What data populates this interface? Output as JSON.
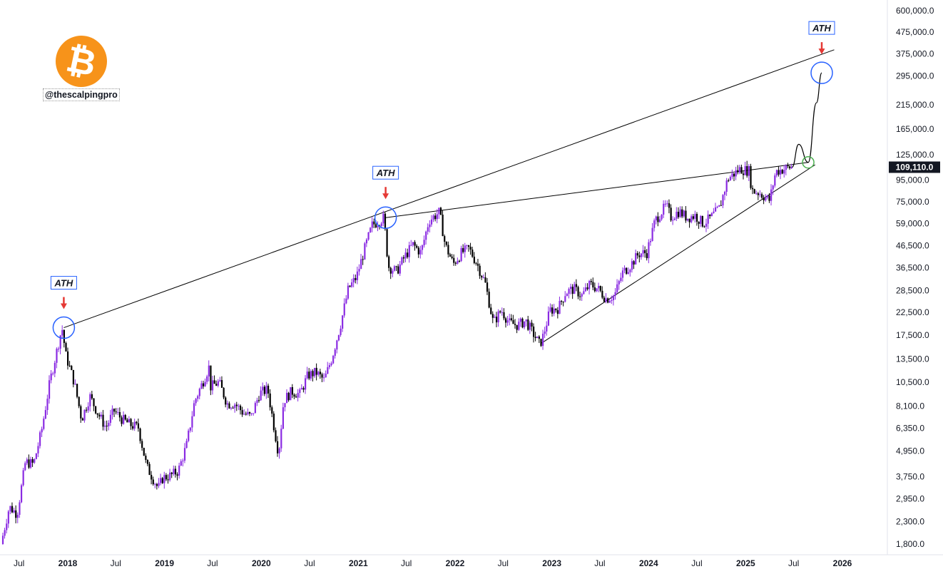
{
  "branding": {
    "handle": "@thescalpingpro",
    "logo_glyph": "₿",
    "logo_color": "#f7931a"
  },
  "chart_data": {
    "type": "candlestick",
    "y_scale": "log",
    "ylim": [
      1500,
      700000
    ],
    "y_ticks": [
      "600,000.0",
      "475,000.0",
      "375,000.0",
      "295,000.0",
      "215,000.0",
      "165,000.0",
      "125,000.0",
      "95,000.0",
      "75,000.0",
      "59,000.0",
      "46,500.0",
      "36,500.0",
      "28,500.0",
      "22,500.0",
      "17,500.0",
      "13,500.0",
      "10,500.0",
      "8,100.0",
      "6,350.0",
      "4,950.0",
      "3,750.0",
      "2,950.0",
      "2,300.0",
      "1,800.0"
    ],
    "x_ticks": [
      "Jul",
      "2018",
      "Jul",
      "2019",
      "Jul",
      "2020",
      "Jul",
      "2021",
      "Jul",
      "2022",
      "Jul",
      "2023",
      "Jul",
      "2024",
      "Jul",
      "2025",
      "Jul",
      "2026"
    ],
    "last_price": {
      "value": 109110,
      "label": "109,110.0"
    },
    "colors": {
      "up": "#8a2be2",
      "down": "#000000",
      "line": "#000000",
      "ath_circle": "#2962ff",
      "breakout_circle": "#4caf50",
      "arrow": "#e53935"
    },
    "path_points": [
      [
        "2017-05-01",
        1800
      ],
      [
        "2017-06-01",
        2700
      ],
      [
        "2017-07-01",
        2500
      ],
      [
        "2017-08-01",
        4400
      ],
      [
        "2017-09-01",
        4300
      ],
      [
        "2017-10-01",
        6200
      ],
      [
        "2017-11-01",
        10500
      ],
      [
        "2017-12-17",
        19000
      ],
      [
        "2018-01-01",
        14000
      ],
      [
        "2018-02-01",
        10500
      ],
      [
        "2018-03-01",
        7000
      ],
      [
        "2018-04-01",
        9000
      ],
      [
        "2018-05-01",
        7500
      ],
      [
        "2018-06-01",
        6400
      ],
      [
        "2018-07-01",
        7700
      ],
      [
        "2018-08-01",
        7000
      ],
      [
        "2018-09-01",
        6600
      ],
      [
        "2018-10-01",
        6400
      ],
      [
        "2018-11-01",
        4200
      ],
      [
        "2018-12-15",
        3300
      ],
      [
        "2019-01-01",
        3700
      ],
      [
        "2019-02-01",
        3800
      ],
      [
        "2019-03-01",
        4000
      ],
      [
        "2019-04-01",
        5300
      ],
      [
        "2019-05-01",
        8500
      ],
      [
        "2019-06-26",
        12500
      ],
      [
        "2019-07-01",
        10000
      ],
      [
        "2019-08-01",
        10500
      ],
      [
        "2019-09-01",
        8300
      ],
      [
        "2019-10-01",
        8300
      ],
      [
        "2019-11-01",
        7500
      ],
      [
        "2019-12-01",
        7200
      ],
      [
        "2020-01-01",
        9300
      ],
      [
        "2020-02-01",
        9700
      ],
      [
        "2020-03-13",
        4800
      ],
      [
        "2020-04-01",
        8600
      ],
      [
        "2020-05-01",
        9500
      ],
      [
        "2020-06-01",
        9200
      ],
      [
        "2020-07-01",
        11300
      ],
      [
        "2020-08-01",
        11700
      ],
      [
        "2020-09-01",
        10700
      ],
      [
        "2020-10-01",
        13800
      ],
      [
        "2020-11-01",
        19500
      ],
      [
        "2020-12-01",
        29000
      ],
      [
        "2021-01-01",
        33000
      ],
      [
        "2021-02-01",
        45000
      ],
      [
        "2021-03-01",
        58000
      ],
      [
        "2021-04-14",
        63000
      ],
      [
        "2021-05-01",
        37000
      ],
      [
        "2021-06-01",
        35000
      ],
      [
        "2021-07-01",
        41000
      ],
      [
        "2021-08-01",
        47000
      ],
      [
        "2021-09-01",
        43000
      ],
      [
        "2021-10-01",
        61000
      ],
      [
        "2021-11-10",
        67000
      ],
      [
        "2021-12-01",
        47000
      ],
      [
        "2022-01-01",
        38000
      ],
      [
        "2022-02-01",
        43000
      ],
      [
        "2022-03-01",
        45000
      ],
      [
        "2022-04-01",
        38000
      ],
      [
        "2022-05-01",
        31000
      ],
      [
        "2022-06-01",
        20000
      ],
      [
        "2022-07-01",
        23000
      ],
      [
        "2022-08-01",
        20000
      ],
      [
        "2022-09-01",
        19500
      ],
      [
        "2022-10-01",
        20500
      ],
      [
        "2022-11-21",
        16000
      ],
      [
        "2022-12-01",
        16500
      ],
      [
        "2023-01-01",
        23000
      ],
      [
        "2023-02-01",
        23500
      ],
      [
        "2023-03-01",
        28000
      ],
      [
        "2023-04-01",
        29000
      ],
      [
        "2023-05-01",
        27000
      ],
      [
        "2023-06-01",
        30500
      ],
      [
        "2023-07-01",
        29000
      ],
      [
        "2023-08-01",
        26000
      ],
      [
        "2023-09-01",
        27000
      ],
      [
        "2023-10-01",
        34500
      ],
      [
        "2023-11-01",
        37700
      ],
      [
        "2023-12-01",
        42500
      ],
      [
        "2024-01-01",
        43000
      ],
      [
        "2024-02-01",
        61000
      ],
      [
        "2024-03-14",
        72000
      ],
      [
        "2024-04-01",
        63500
      ],
      [
        "2024-05-01",
        67500
      ],
      [
        "2024-06-01",
        63000
      ],
      [
        "2024-07-01",
        64500
      ],
      [
        "2024-08-01",
        59000
      ],
      [
        "2024-09-01",
        63500
      ],
      [
        "2024-10-01",
        70000
      ],
      [
        "2024-11-01",
        96000
      ],
      [
        "2024-12-17",
        107000
      ],
      [
        "2025-01-20",
        105000
      ],
      [
        "2025-02-01",
        84500
      ],
      [
        "2025-03-01",
        82500
      ],
      [
        "2025-04-08",
        76000
      ],
      [
        "2025-05-01",
        104000
      ],
      [
        "2025-06-01",
        107000
      ],
      [
        "2025-06-25",
        109110
      ]
    ],
    "projection_points": [
      [
        "2025-06-25",
        109110
      ],
      [
        "2025-07-20",
        140000
      ],
      [
        "2025-08-25",
        115000
      ],
      [
        "2025-09-25",
        220000
      ],
      [
        "2025-10-15",
        305000
      ]
    ],
    "trendlines": [
      {
        "p1": [
          "2017-12-17",
          19000
        ],
        "p2": [
          "2025-12-01",
          392000
        ]
      },
      {
        "p1": [
          "2021-04-14",
          63000
        ],
        "p2": [
          "2025-08-25",
          115000
        ]
      },
      {
        "p1": [
          "2022-11-21",
          16000
        ],
        "p2": [
          "2025-09-20",
          112000
        ]
      }
    ],
    "ath_markers": [
      {
        "label": "ATH",
        "date": "2017-12-17",
        "value": 19000
      },
      {
        "label": "ATH",
        "date": "2021-04-14",
        "value": 63000
      },
      {
        "label": "ATH",
        "date": "2025-10-15",
        "value": 305000
      }
    ],
    "breakout_marker": {
      "date": "2025-08-25",
      "value": 115000
    }
  }
}
